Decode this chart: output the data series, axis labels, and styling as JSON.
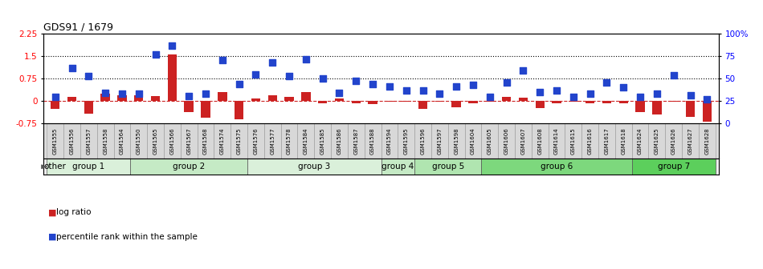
{
  "title": "GDS91 / 1679",
  "samples": [
    "GSM1555",
    "GSM1556",
    "GSM1557",
    "GSM1558",
    "GSM1564",
    "GSM1550",
    "GSM1565",
    "GSM1566",
    "GSM1567",
    "GSM1568",
    "GSM1574",
    "GSM1575",
    "GSM1576",
    "GSM1577",
    "GSM1578",
    "GSM1584",
    "GSM1585",
    "GSM1586",
    "GSM1587",
    "GSM1588",
    "GSM1594",
    "GSM1595",
    "GSM1596",
    "GSM1597",
    "GSM1598",
    "GSM1604",
    "GSM1605",
    "GSM1606",
    "GSM1607",
    "GSM1608",
    "GSM1614",
    "GSM1615",
    "GSM1616",
    "GSM1617",
    "GSM1618",
    "GSM1624",
    "GSM1625",
    "GSM1626",
    "GSM1627",
    "GSM1628"
  ],
  "log_ratio": [
    -0.28,
    0.12,
    -0.45,
    0.22,
    0.18,
    0.18,
    0.14,
    1.55,
    -0.38,
    -0.58,
    0.28,
    -0.62,
    0.08,
    0.18,
    0.12,
    0.28,
    -0.08,
    0.08,
    -0.08,
    -0.12,
    -0.05,
    -0.05,
    -0.28,
    -0.05,
    -0.22,
    -0.08,
    -0.05,
    0.12,
    0.1,
    -0.25,
    -0.08,
    -0.05,
    -0.08,
    -0.08,
    -0.08,
    -0.38,
    -0.48,
    -0.05,
    -0.55,
    -0.72
  ],
  "percentile_left": [
    0.13,
    1.08,
    0.82,
    0.25,
    0.22,
    0.22,
    1.55,
    1.85,
    0.15,
    0.22,
    1.35,
    0.55,
    0.88,
    1.28,
    0.82,
    1.38,
    0.75,
    0.25,
    0.65,
    0.55,
    0.48,
    0.35,
    0.35,
    0.22,
    0.48,
    0.52,
    0.12,
    0.62,
    1.02,
    0.28,
    0.35,
    0.12,
    0.22,
    0.62,
    0.45,
    0.12,
    0.22,
    0.85,
    0.18,
    0.05
  ],
  "groups": [
    {
      "name": "group 1",
      "start": 0,
      "end": 5
    },
    {
      "name": "group 2",
      "start": 5,
      "end": 12
    },
    {
      "name": "group 3",
      "start": 12,
      "end": 20
    },
    {
      "name": "group 4",
      "start": 20,
      "end": 22
    },
    {
      "name": "group 5",
      "start": 22,
      "end": 26
    },
    {
      "name": "group 6",
      "start": 26,
      "end": 35
    },
    {
      "name": "group 7",
      "start": 35,
      "end": 40
    }
  ],
  "group_colors": [
    "#daf0da",
    "#c5eac5",
    "#daf0da",
    "#c5eac5",
    "#b0e5b0",
    "#7dd87d",
    "#5ccf5c"
  ],
  "ylim_left": [
    -0.75,
    2.25
  ],
  "ylim_right": [
    0,
    100
  ],
  "yticks_left": [
    -0.75,
    0.0,
    0.75,
    1.5,
    2.25
  ],
  "yticks_right": [
    0,
    25,
    50,
    75,
    100
  ],
  "dotted_lines": [
    0.75,
    1.5
  ],
  "bar_color": "#cc2222",
  "dot_color": "#2244cc",
  "bar_width": 0.55,
  "dot_size": 28,
  "background_color": "#ffffff"
}
